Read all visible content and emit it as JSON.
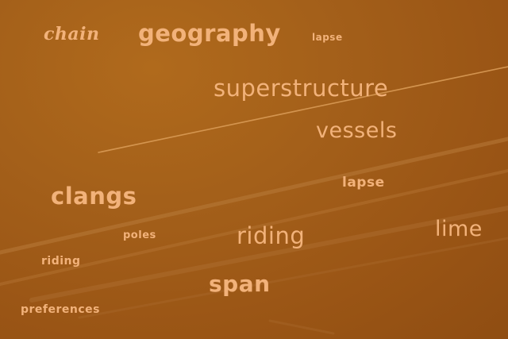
{
  "colors": {
    "sky": "#a4601a",
    "text": "#f2b27a",
    "contrail": "#c98a4a"
  },
  "words": {
    "chain": "chain",
    "geography": "geography",
    "lapse_top": "lapse",
    "superstructure": "superstructure",
    "vessels": "vessels",
    "lapse_mid": "lapse",
    "clangs": "clangs",
    "poles": "poles",
    "riding_large": "riding",
    "lime": "lime",
    "riding_small": "riding",
    "span": "span",
    "preferences": "preferences"
  }
}
